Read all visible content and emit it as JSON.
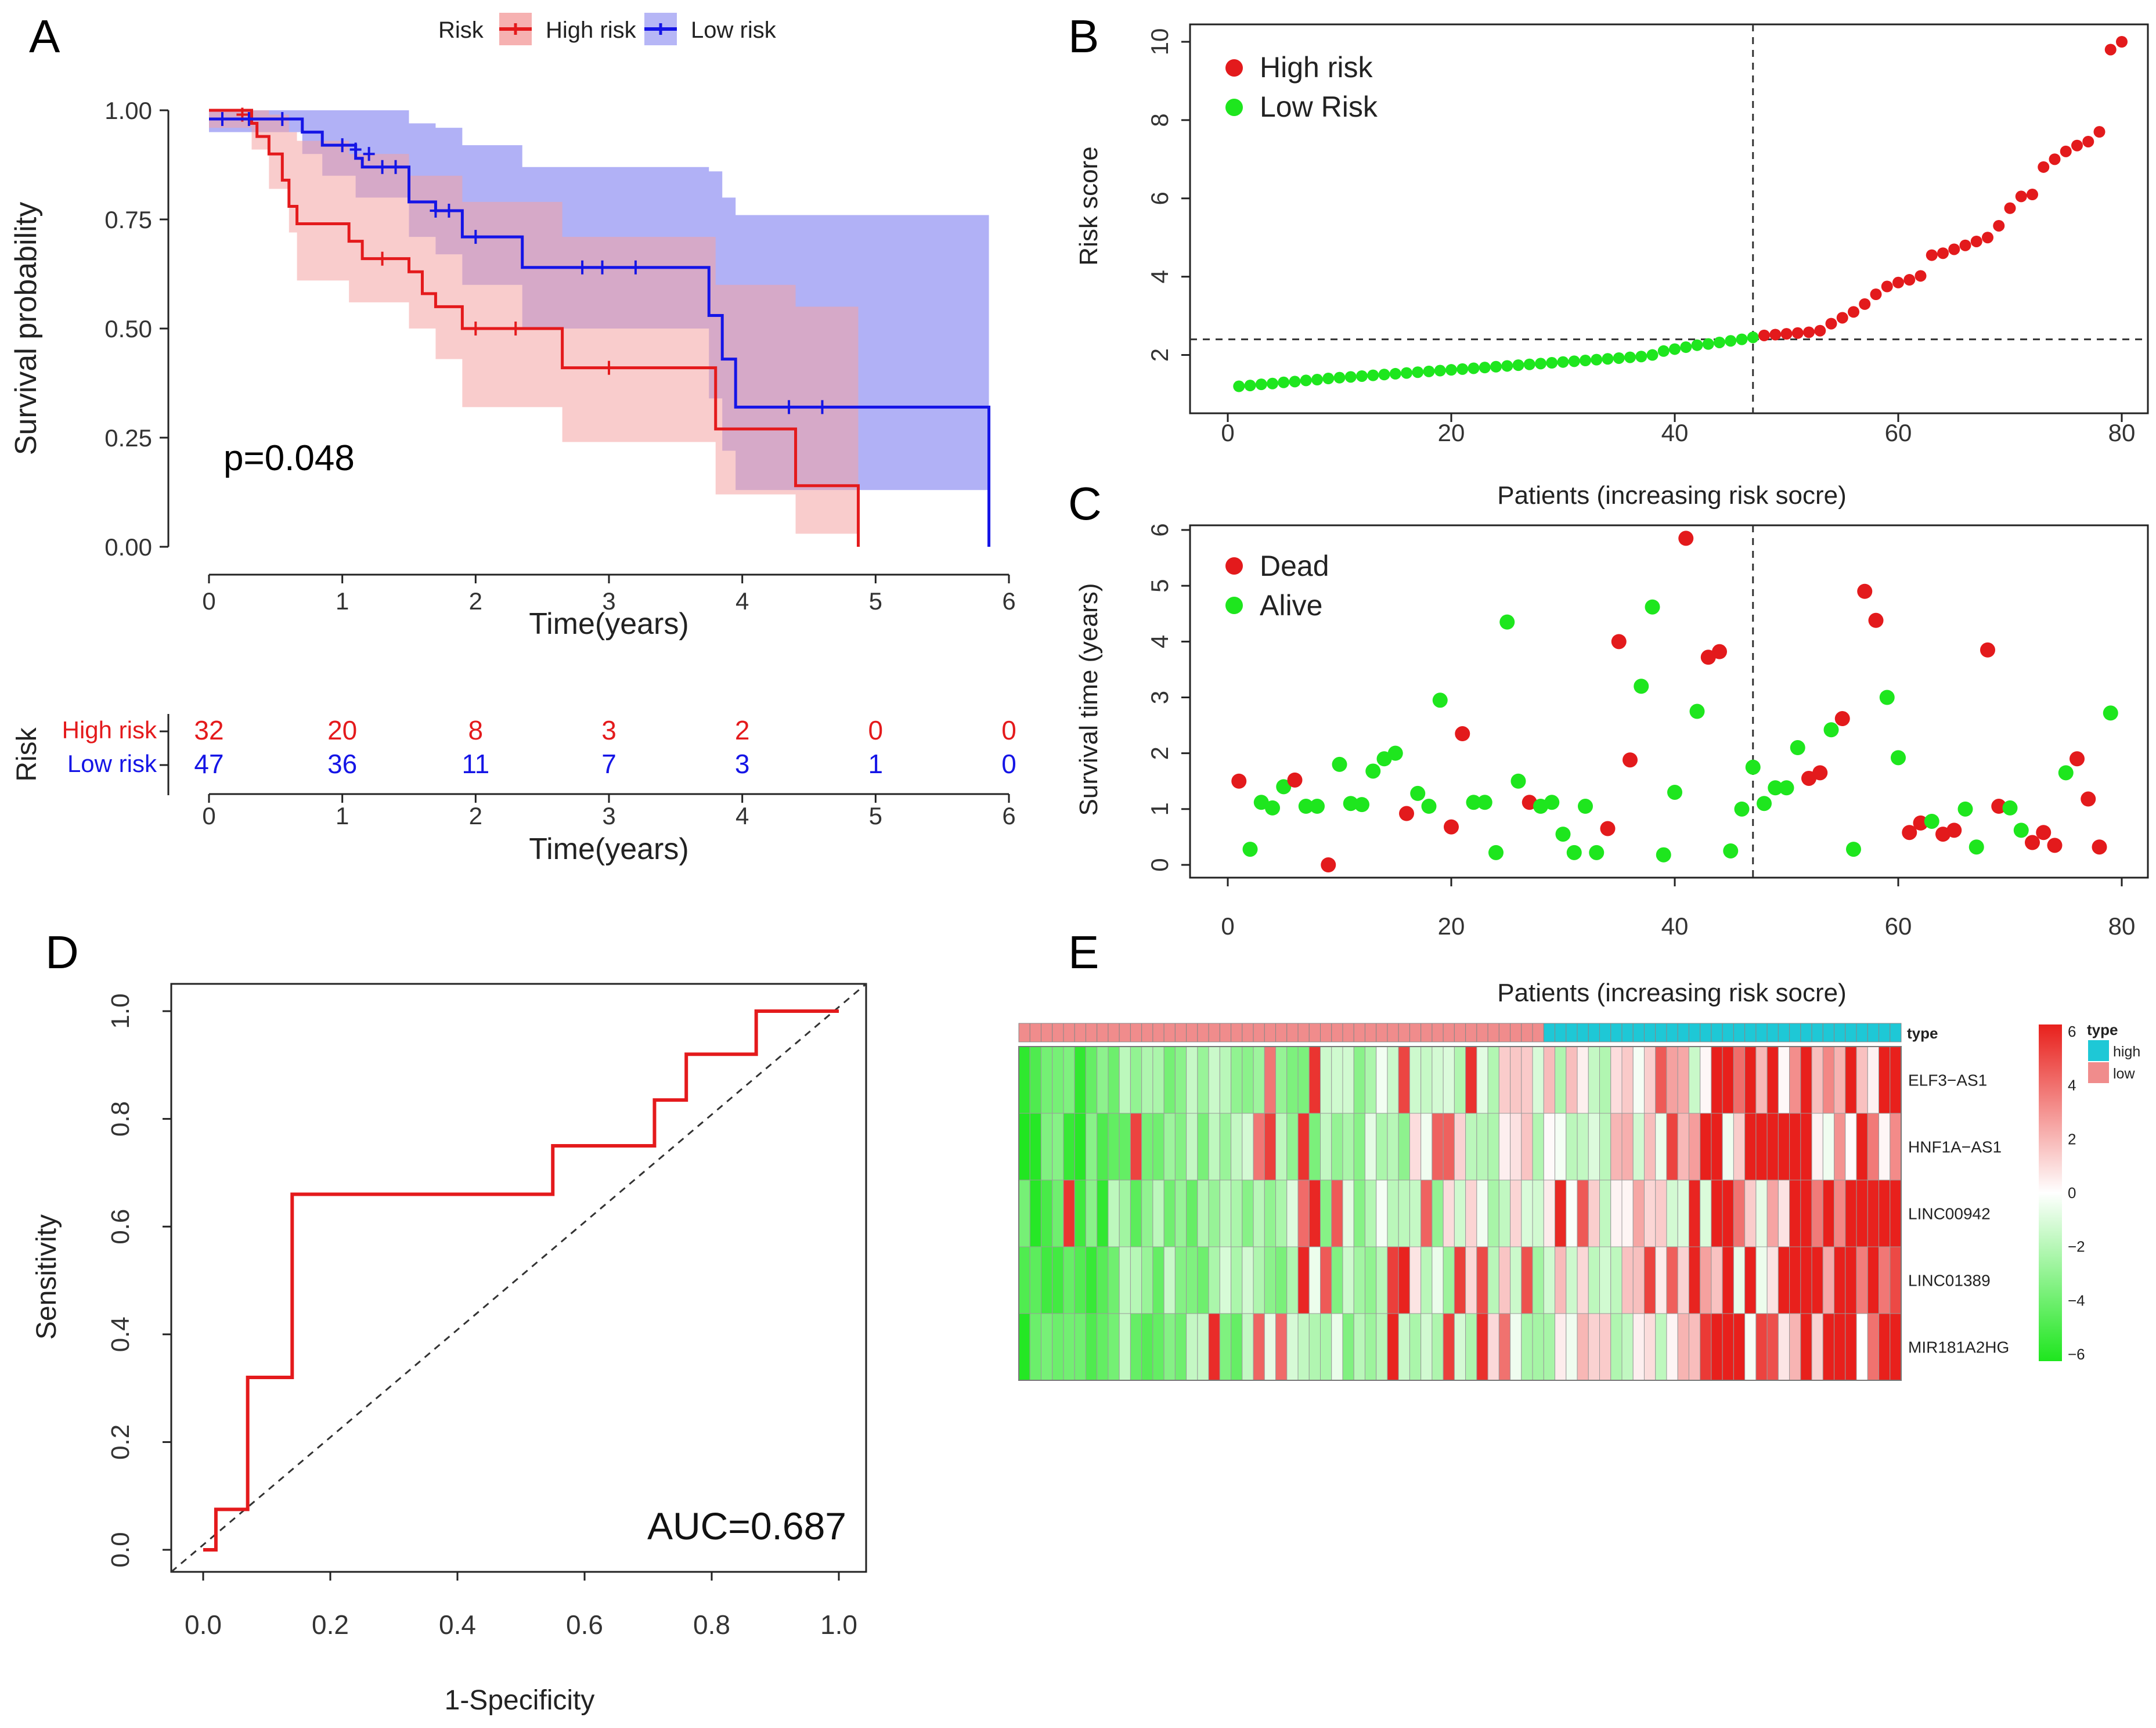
{
  "chart_data": [
    {
      "panel": "A",
      "type": "line",
      "title": "",
      "xlabel": "Time(years)",
      "ylabel": "Survival probability",
      "xlim": [
        0,
        6
      ],
      "ylim": [
        0,
        1
      ],
      "xticks": [
        "0",
        "1",
        "2",
        "3",
        "4",
        "5",
        "6"
      ],
      "yticks": [
        "0.00",
        "0.25",
        "0.50",
        "0.75",
        "1.00"
      ],
      "legend": {
        "title": "Risk",
        "entries": [
          "High risk",
          "Low risk"
        ],
        "position": "top"
      },
      "annotation": "p=0.048",
      "series": [
        {
          "name": "High risk",
          "color": "#e41a1c",
          "band_color": "#f4a3a3",
          "steps": [
            [
              0,
              1.0
            ],
            [
              0.32,
              0.97
            ],
            [
              0.36,
              0.94
            ],
            [
              0.45,
              0.9
            ],
            [
              0.55,
              0.84
            ],
            [
              0.6,
              0.78
            ],
            [
              0.66,
              0.74
            ],
            [
              1.05,
              0.7
            ],
            [
              1.15,
              0.66
            ],
            [
              1.5,
              0.63
            ],
            [
              1.6,
              0.58
            ],
            [
              1.7,
              0.55
            ],
            [
              1.9,
              0.5
            ],
            [
              2.65,
              0.41
            ],
            [
              3.8,
              0.27
            ],
            [
              4.4,
              0.14
            ],
            [
              4.87,
              0.0
            ]
          ],
          "upper": [
            [
              0,
              1.0
            ],
            [
              0.32,
              1.0
            ],
            [
              0.45,
              0.99
            ],
            [
              0.6,
              0.95
            ],
            [
              0.66,
              0.93
            ],
            [
              1.05,
              0.9
            ],
            [
              1.5,
              0.85
            ],
            [
              1.9,
              0.79
            ],
            [
              2.65,
              0.71
            ],
            [
              3.8,
              0.6
            ],
            [
              4.4,
              0.55
            ]
          ],
          "lower": [
            [
              0,
              0.96
            ],
            [
              0.32,
              0.91
            ],
            [
              0.45,
              0.82
            ],
            [
              0.6,
              0.72
            ],
            [
              0.66,
              0.61
            ],
            [
              1.05,
              0.56
            ],
            [
              1.5,
              0.5
            ],
            [
              1.7,
              0.43
            ],
            [
              1.9,
              0.32
            ],
            [
              2.65,
              0.24
            ],
            [
              3.8,
              0.12
            ],
            [
              4.4,
              0.03
            ]
          ],
          "band_end": 4.87,
          "censor": [
            [
              0.25,
              0.99
            ],
            [
              1.3,
              0.66
            ],
            [
              2.0,
              0.5
            ],
            [
              2.3,
              0.5
            ],
            [
              3.0,
              0.41
            ]
          ]
        },
        {
          "name": "Low risk",
          "color": "#1515e6",
          "band_color": "#a9a9f5",
          "steps": [
            [
              0,
              0.98
            ],
            [
              0.7,
              0.95
            ],
            [
              0.85,
              0.92
            ],
            [
              1.1,
              0.89
            ],
            [
              1.15,
              0.87
            ],
            [
              1.5,
              0.79
            ],
            [
              1.7,
              0.77
            ],
            [
              1.9,
              0.71
            ],
            [
              2.35,
              0.64
            ],
            [
              3.75,
              0.53
            ],
            [
              3.85,
              0.43
            ],
            [
              3.95,
              0.32
            ],
            [
              5.85,
              0.0
            ]
          ],
          "upper": [
            [
              0,
              1.0
            ],
            [
              1.1,
              1.0
            ],
            [
              1.5,
              0.97
            ],
            [
              1.7,
              0.96
            ],
            [
              1.9,
              0.92
            ],
            [
              2.35,
              0.87
            ],
            [
              3.75,
              0.86
            ],
            [
              3.85,
              0.8
            ],
            [
              3.95,
              0.76
            ]
          ],
          "lower": [
            [
              0,
              0.95
            ],
            [
              0.7,
              0.9
            ],
            [
              0.85,
              0.85
            ],
            [
              1.1,
              0.8
            ],
            [
              1.5,
              0.71
            ],
            [
              1.7,
              0.67
            ],
            [
              1.9,
              0.6
            ],
            [
              2.35,
              0.5
            ],
            [
              3.75,
              0.34
            ],
            [
              3.85,
              0.22
            ],
            [
              3.95,
              0.13
            ]
          ],
          "band_end": 5.85,
          "censor": [
            [
              0.1,
              0.98
            ],
            [
              0.3,
              0.98
            ],
            [
              0.55,
              0.98
            ],
            [
              1.0,
              0.92
            ],
            [
              1.1,
              0.91
            ],
            [
              1.2,
              0.9
            ],
            [
              1.3,
              0.87
            ],
            [
              1.4,
              0.87
            ],
            [
              1.7,
              0.77
            ],
            [
              1.8,
              0.77
            ],
            [
              2.0,
              0.71
            ],
            [
              2.8,
              0.64
            ],
            [
              2.95,
              0.64
            ],
            [
              3.2,
              0.64
            ],
            [
              4.35,
              0.32
            ],
            [
              4.6,
              0.32
            ]
          ]
        }
      ]
    },
    {
      "panel": "A-risk-table",
      "type": "table",
      "ylabel": "Risk",
      "xlabel": "Time(years)",
      "xticks": [
        "0",
        "1",
        "2",
        "3",
        "4",
        "5",
        "6"
      ],
      "rows": [
        {
          "name": "High risk",
          "color": "#e41a1c",
          "values": [
            "32",
            "20",
            "8",
            "3",
            "2",
            "0",
            "0"
          ]
        },
        {
          "name": "Low risk",
          "color": "#1515e6",
          "values": [
            "47",
            "36",
            "11",
            "7",
            "3",
            "1",
            "0"
          ]
        }
      ]
    },
    {
      "panel": "B",
      "type": "scatter",
      "xlabel": "Patients (increasing risk socre)",
      "ylabel": "Risk score",
      "xlim": [
        0,
        80
      ],
      "ylim": [
        1,
        10
      ],
      "xticks": [
        "0",
        "20",
        "40",
        "60",
        "80"
      ],
      "yticks": [
        "2",
        "4",
        "6",
        "8",
        "10"
      ],
      "cutoff_x": 47,
      "cutoff_y": 2.4,
      "legend": {
        "entries": [
          "High risk",
          "Low Risk"
        ],
        "colors": [
          "#e31a1c",
          "#1ee61e"
        ],
        "position": "top-left"
      },
      "split_index": 47,
      "values": [
        1.2,
        1.22,
        1.25,
        1.27,
        1.3,
        1.32,
        1.35,
        1.37,
        1.4,
        1.42,
        1.44,
        1.46,
        1.48,
        1.5,
        1.52,
        1.54,
        1.56,
        1.58,
        1.6,
        1.62,
        1.64,
        1.66,
        1.68,
        1.7,
        1.72,
        1.74,
        1.76,
        1.78,
        1.8,
        1.82,
        1.84,
        1.86,
        1.88,
        1.9,
        1.92,
        1.94,
        1.96,
        2.0,
        2.1,
        2.15,
        2.2,
        2.25,
        2.28,
        2.32,
        2.36,
        2.4,
        2.45,
        2.5,
        2.52,
        2.54,
        2.56,
        2.58,
        2.62,
        2.8,
        2.95,
        3.1,
        3.3,
        3.55,
        3.75,
        3.85,
        3.92,
        4.02,
        4.55,
        4.6,
        4.7,
        4.8,
        4.9,
        5.0,
        5.3,
        5.75,
        6.05,
        6.1,
        6.8,
        7.0,
        7.2,
        7.35,
        7.45,
        7.7,
        9.8,
        10.0
      ]
    },
    {
      "panel": "C",
      "type": "scatter",
      "xlabel": "",
      "ylabel": "Survival time (years)",
      "xlim": [
        0,
        80
      ],
      "ylim": [
        0,
        6
      ],
      "xticks": [
        "0",
        "20",
        "40",
        "60",
        "80"
      ],
      "yticks": [
        "0",
        "1",
        "2",
        "3",
        "4",
        "5",
        "6"
      ],
      "cutoff_x": 47,
      "legend": {
        "entries": [
          "Dead",
          "Alive"
        ],
        "colors": [
          "#e31a1c",
          "#1ee61e"
        ],
        "position": "top-left"
      },
      "points": [
        [
          1,
          1.5,
          "d"
        ],
        [
          2,
          0.28,
          "a"
        ],
        [
          3,
          1.12,
          "a"
        ],
        [
          4,
          1.02,
          "a"
        ],
        [
          5,
          1.4,
          "a"
        ],
        [
          6,
          1.52,
          "d"
        ],
        [
          7,
          1.05,
          "a"
        ],
        [
          8,
          1.05,
          "a"
        ],
        [
          9,
          0.0,
          "d"
        ],
        [
          10,
          1.8,
          "a"
        ],
        [
          11,
          1.1,
          "a"
        ],
        [
          12,
          1.08,
          "a"
        ],
        [
          13,
          1.68,
          "a"
        ],
        [
          14,
          1.9,
          "a"
        ],
        [
          15,
          2.0,
          "a"
        ],
        [
          16,
          0.92,
          "d"
        ],
        [
          17,
          1.28,
          "a"
        ],
        [
          18,
          1.05,
          "a"
        ],
        [
          19,
          2.95,
          "a"
        ],
        [
          20,
          0.68,
          "d"
        ],
        [
          21,
          2.35,
          "d"
        ],
        [
          22,
          1.12,
          "a"
        ],
        [
          23,
          1.12,
          "a"
        ],
        [
          24,
          0.22,
          "a"
        ],
        [
          25,
          4.35,
          "a"
        ],
        [
          26,
          1.5,
          "a"
        ],
        [
          27,
          1.12,
          "d"
        ],
        [
          28,
          1.05,
          "a"
        ],
        [
          29,
          1.12,
          "a"
        ],
        [
          30,
          0.55,
          "a"
        ],
        [
          31,
          0.22,
          "a"
        ],
        [
          32,
          1.05,
          "a"
        ],
        [
          33,
          0.22,
          "a"
        ],
        [
          34,
          0.65,
          "d"
        ],
        [
          35,
          4.0,
          "d"
        ],
        [
          36,
          1.88,
          "d"
        ],
        [
          37,
          3.2,
          "a"
        ],
        [
          38,
          4.62,
          "a"
        ],
        [
          39,
          0.18,
          "a"
        ],
        [
          40,
          1.3,
          "a"
        ],
        [
          41,
          5.85,
          "d"
        ],
        [
          42,
          2.75,
          "a"
        ],
        [
          43,
          3.72,
          "d"
        ],
        [
          44,
          3.82,
          "d"
        ],
        [
          45,
          0.25,
          "a"
        ],
        [
          46,
          1.0,
          "a"
        ],
        [
          47,
          1.75,
          "a"
        ],
        [
          48,
          1.1,
          "a"
        ],
        [
          49,
          1.38,
          "a"
        ],
        [
          50,
          1.38,
          "a"
        ],
        [
          51,
          2.1,
          "a"
        ],
        [
          52,
          1.55,
          "d"
        ],
        [
          53,
          1.65,
          "d"
        ],
        [
          54,
          2.42,
          "a"
        ],
        [
          55,
          2.62,
          "d"
        ],
        [
          56,
          0.28,
          "a"
        ],
        [
          57,
          4.9,
          "d"
        ],
        [
          58,
          4.38,
          "d"
        ],
        [
          59,
          3.0,
          "a"
        ],
        [
          60,
          1.92,
          "a"
        ],
        [
          61,
          0.58,
          "d"
        ],
        [
          62,
          0.75,
          "d"
        ],
        [
          63,
          0.78,
          "a"
        ],
        [
          64,
          0.55,
          "d"
        ],
        [
          65,
          0.62,
          "d"
        ],
        [
          66,
          1.0,
          "a"
        ],
        [
          67,
          0.32,
          "a"
        ],
        [
          68,
          3.85,
          "d"
        ],
        [
          69,
          1.05,
          "d"
        ],
        [
          70,
          1.02,
          "a"
        ],
        [
          71,
          0.62,
          "a"
        ],
        [
          72,
          0.4,
          "d"
        ],
        [
          73,
          0.58,
          "d"
        ],
        [
          74,
          0.35,
          "d"
        ],
        [
          75,
          1.65,
          "a"
        ],
        [
          76,
          1.9,
          "d"
        ],
        [
          77,
          1.18,
          "d"
        ],
        [
          78,
          0.32,
          "d"
        ],
        [
          79,
          2.72,
          "a"
        ]
      ]
    },
    {
      "panel": "D",
      "type": "line",
      "xlabel": "1-Specificity",
      "ylabel": "Sensitivity",
      "xlim": [
        0,
        1
      ],
      "ylim": [
        0,
        1
      ],
      "xticks": [
        "0.0",
        "0.2",
        "0.4",
        "0.6",
        "0.8",
        "1.0"
      ],
      "yticks": [
        "0.0",
        "0.2",
        "0.4",
        "0.6",
        "0.8",
        "1.0"
      ],
      "annotation": "AUC=0.687",
      "series": [
        {
          "name": "ROC",
          "color": "#e41a1c",
          "x": [
            0,
            0.02,
            0.02,
            0.07,
            0.07,
            0.14,
            0.14,
            0.55,
            0.55,
            0.71,
            0.71,
            0.76,
            0.76,
            0.87,
            0.87,
            1.0
          ],
          "y": [
            0,
            0,
            0.075,
            0.075,
            0.32,
            0.32,
            0.66,
            0.66,
            0.75,
            0.75,
            0.835,
            0.835,
            0.92,
            0.92,
            1.0,
            1.0
          ]
        }
      ]
    },
    {
      "panel": "E",
      "type": "heatmap",
      "title": "Patients (increasing risk socre)",
      "rows": [
        "ELF3−AS1",
        "HNF1A−AS1",
        "LINC00942",
        "LINC01389",
        "MIR181A2HG"
      ],
      "n_cols": 79,
      "split_index": 47,
      "annotation_label": "type",
      "annotation_legend": {
        "title": "type",
        "entries": [
          "high",
          "low"
        ],
        "colors": [
          "#1ec8d6",
          "#f08c8c"
        ]
      },
      "colorbar": {
        "ticks": [
          "6",
          "4",
          "2",
          "0",
          "−2",
          "−4",
          "−6"
        ],
        "low": "#1ee61e",
        "mid": "#ffffff",
        "high": "#e8201c"
      }
    }
  ]
}
